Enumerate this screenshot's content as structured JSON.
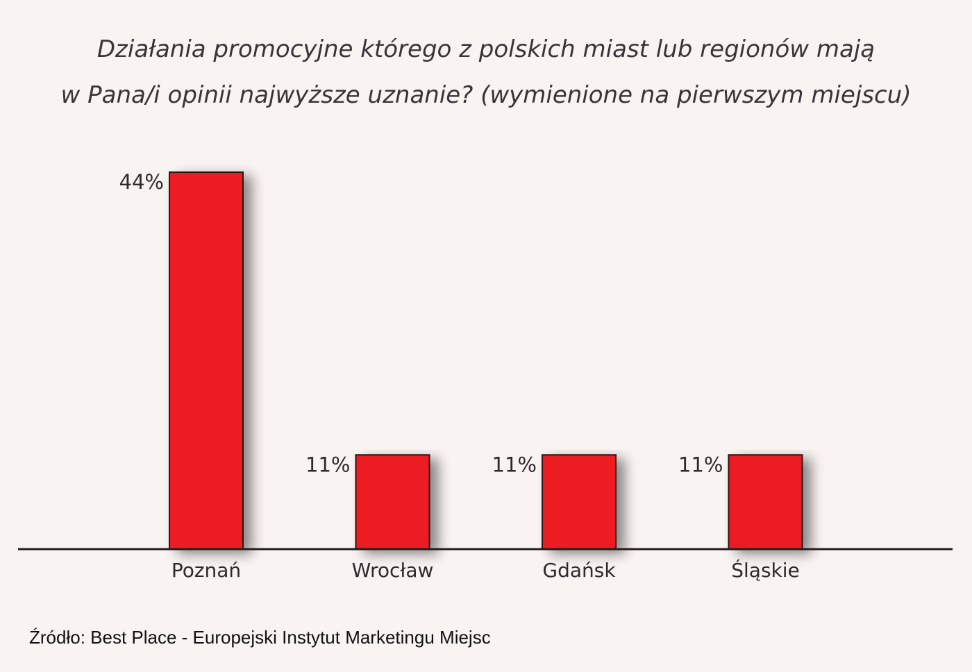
{
  "chart_data": {
    "type": "bar",
    "title_lines": [
      "Działania promocyjne którego z polskich miast lub regionów mają",
      "w Pana/i opinii najwyższe uznanie? (wymienione na pierwszym miejscu)"
    ],
    "categories": [
      "Poznań",
      "Wrocław",
      "Gdańsk",
      "Śląskie"
    ],
    "values": [
      44,
      11,
      11,
      11
    ],
    "value_labels": [
      "44%",
      "11%",
      "11%",
      "11%"
    ],
    "unit": "%",
    "ylim": [
      0,
      44
    ],
    "xlabel": "",
    "ylabel": "",
    "grid": false,
    "legend": null,
    "bar_color": "#ed1c24",
    "source": "Źródło: Best Place - Europejski Instytut Marketingu Miejsc"
  }
}
